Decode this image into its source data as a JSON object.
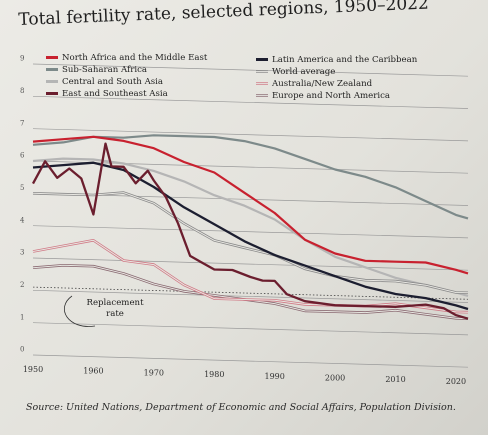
{
  "chart_data": {
    "type": "line",
    "title": "Total fertility rate, selected regions, 1950–2022",
    "source": "Source: United Nations, Department of Economic and Social Affairs, Population Division.",
    "xlabel": "",
    "ylabel": "",
    "xlim": [
      1950,
      2022
    ],
    "ylim": [
      0,
      9
    ],
    "x_ticks": [
      1950,
      1960,
      1970,
      1980,
      1990,
      2000,
      2010,
      2020
    ],
    "y_ticks": [
      0,
      1,
      2,
      3,
      4,
      5,
      6,
      7,
      8,
      9
    ],
    "grid": true,
    "legend_position": "top",
    "annotation": {
      "text_line1": "Replacement",
      "text_line2": "rate",
      "value": 2.1
    },
    "series": [
      {
        "name": "North Africa and the Middle East",
        "color": "#c8212f",
        "x": [
          1950,
          1955,
          1960,
          1965,
          1970,
          1975,
          1980,
          1985,
          1990,
          1995,
          2000,
          2005,
          2010,
          2015,
          2020,
          2022
        ],
        "y": [
          6.6,
          6.7,
          6.8,
          6.7,
          6.5,
          6.1,
          5.8,
          5.2,
          4.6,
          3.8,
          3.4,
          3.2,
          3.2,
          3.2,
          3.0,
          2.9
        ]
      },
      {
        "name": "Sub-Saharan Africa",
        "color": "#7d8a8a",
        "x": [
          1950,
          1955,
          1960,
          1965,
          1970,
          1975,
          1980,
          1985,
          1990,
          1995,
          2000,
          2005,
          2010,
          2015,
          2020,
          2022
        ],
        "y": [
          6.5,
          6.6,
          6.8,
          6.8,
          6.9,
          6.9,
          6.9,
          6.8,
          6.6,
          6.3,
          6.0,
          5.8,
          5.5,
          5.1,
          4.7,
          4.6
        ]
      },
      {
        "name": "Central and South Asia",
        "color": "#b5b5b5",
        "x": [
          1950,
          1955,
          1960,
          1965,
          1970,
          1975,
          1980,
          1985,
          1990,
          1995,
          2000,
          2005,
          2010,
          2015,
          2020,
          2022
        ],
        "y": [
          6.0,
          6.1,
          6.1,
          6.0,
          5.8,
          5.5,
          5.1,
          4.8,
          4.4,
          3.8,
          3.3,
          3.0,
          2.7,
          2.5,
          2.3,
          2.2
        ]
      },
      {
        "name": "East and Southeast Asia",
        "color": "#6b1e2e",
        "x": [
          1950,
          1952,
          1954,
          1956,
          1958,
          1960,
          1962,
          1963,
          1965,
          1967,
          1969,
          1970,
          1972,
          1974,
          1976,
          1978,
          1980,
          1983,
          1986,
          1988,
          1990,
          1992,
          1995,
          2000,
          2005,
          2010,
          2015,
          2018,
          2020,
          2022
        ],
        "y": [
          5.3,
          6.0,
          5.5,
          5.8,
          5.5,
          4.4,
          6.6,
          5.9,
          5.9,
          5.4,
          5.8,
          5.5,
          5.0,
          4.2,
          3.2,
          3.0,
          2.8,
          2.8,
          2.6,
          2.5,
          2.5,
          2.1,
          1.9,
          1.8,
          1.8,
          1.8,
          1.9,
          1.8,
          1.6,
          1.5
        ]
      },
      {
        "name": "Latin America and the Caribbean",
        "color": "#1c1e30",
        "x": [
          1950,
          1955,
          1960,
          1965,
          1970,
          1975,
          1980,
          1985,
          1990,
          1995,
          2000,
          2005,
          2010,
          2015,
          2020,
          2022
        ],
        "y": [
          5.8,
          5.9,
          6.0,
          5.8,
          5.3,
          4.7,
          4.2,
          3.7,
          3.3,
          3.0,
          2.7,
          2.4,
          2.2,
          2.1,
          1.9,
          1.8
        ]
      },
      {
        "name": "World average",
        "color": "#8a8a8a",
        "x": [
          1950,
          1955,
          1960,
          1965,
          1970,
          1975,
          1980,
          1985,
          1990,
          1995,
          2000,
          2005,
          2010,
          2015,
          2020,
          2022
        ],
        "y": [
          5.0,
          5.0,
          5.0,
          5.1,
          4.8,
          4.2,
          3.7,
          3.5,
          3.3,
          2.9,
          2.7,
          2.6,
          2.6,
          2.5,
          2.3,
          2.3
        ]
      },
      {
        "name": "Australia/New Zealand",
        "color": "#d07a86",
        "x": [
          1950,
          1955,
          1960,
          1965,
          1970,
          1975,
          1980,
          1985,
          1990,
          1995,
          2000,
          2005,
          2010,
          2015,
          2020,
          2022
        ],
        "y": [
          3.2,
          3.4,
          3.6,
          3.0,
          2.9,
          2.3,
          1.9,
          1.9,
          1.9,
          1.8,
          1.8,
          1.8,
          1.9,
          1.8,
          1.7,
          1.7
        ]
      },
      {
        "name": "Europe and North America",
        "color": "#8a6a72",
        "x": [
          1950,
          1955,
          1960,
          1965,
          1970,
          1975,
          1980,
          1985,
          1990,
          1995,
          2000,
          2005,
          2010,
          2015,
          2020,
          2022
        ],
        "y": [
          2.7,
          2.8,
          2.8,
          2.6,
          2.3,
          2.1,
          2.0,
          1.9,
          1.8,
          1.6,
          1.6,
          1.6,
          1.7,
          1.6,
          1.5,
          1.5
        ]
      }
    ]
  }
}
